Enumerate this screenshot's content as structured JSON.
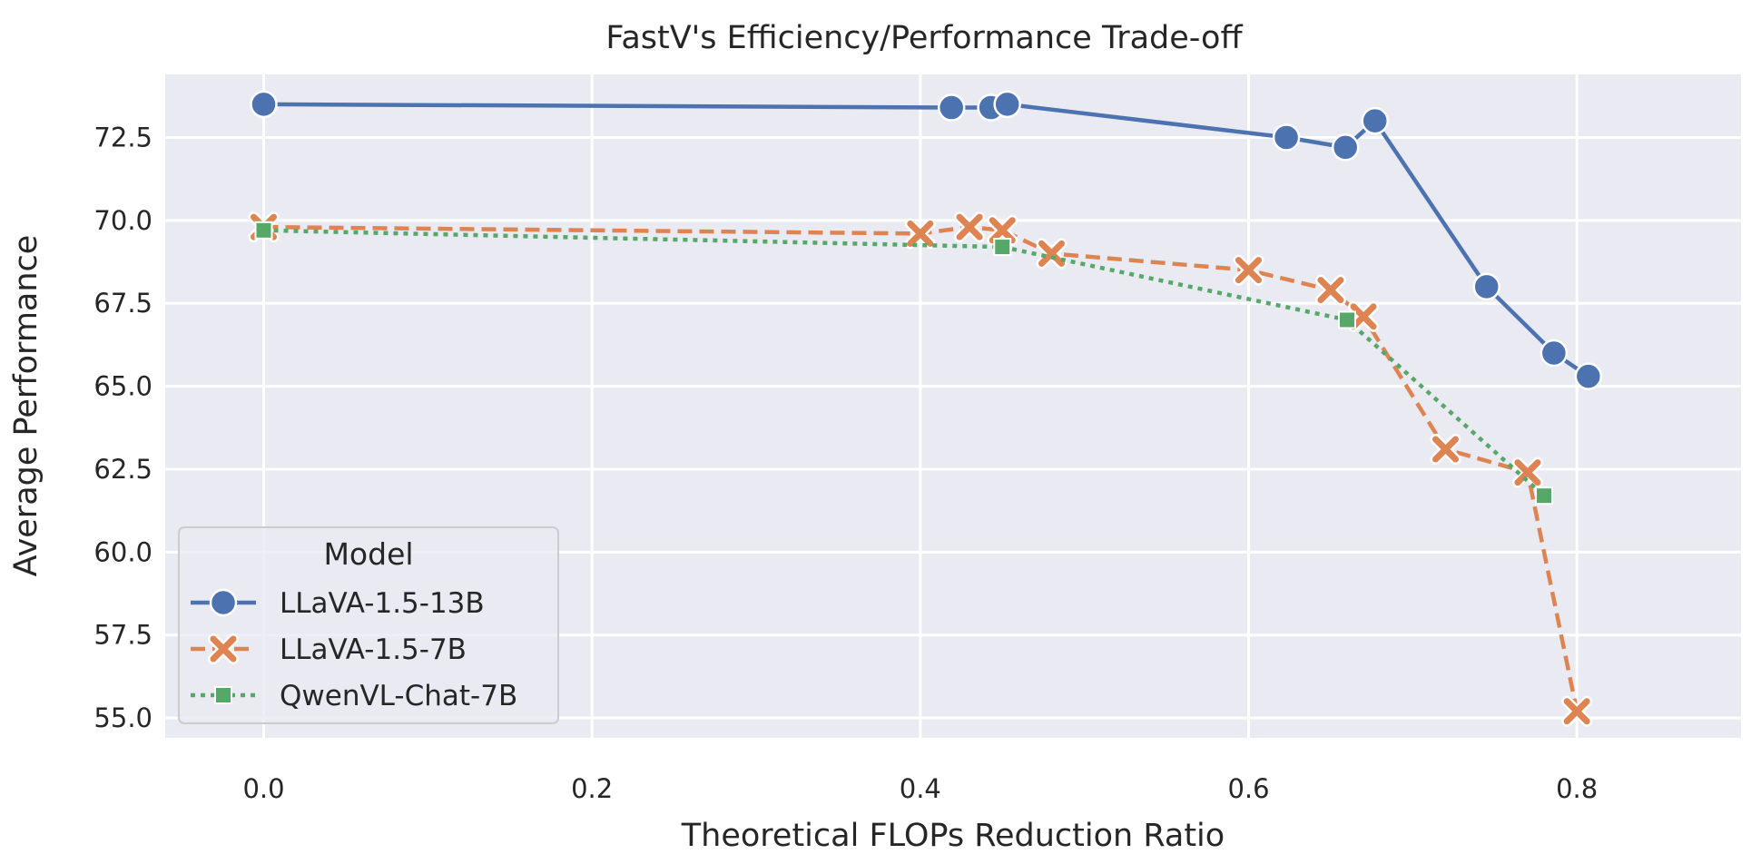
{
  "chart_data": {
    "type": "line",
    "title": "FastV's Efficiency/Performance Trade-off",
    "xlabel": "Theoretical FLOPs Reduction Ratio",
    "ylabel": "Average Performance",
    "xlim": [
      -0.06,
      0.9
    ],
    "ylim": [
      54.4,
      74.4
    ],
    "xticks": [
      0.0,
      0.2,
      0.4,
      0.6,
      0.8
    ],
    "xtick_labels": [
      "0.0",
      "0.2",
      "0.4",
      "0.6",
      "0.8"
    ],
    "yticks": [
      55.0,
      57.5,
      60.0,
      62.5,
      65.0,
      67.5,
      70.0,
      72.5
    ],
    "ytick_labels": [
      "55.0",
      "57.5",
      "60.0",
      "62.5",
      "65.0",
      "67.5",
      "70.0",
      "72.5"
    ],
    "grid": true,
    "background": "#eaeaf2",
    "legend": {
      "title": "Model",
      "placement": "lower-left"
    },
    "series": [
      {
        "name": "LLaVA-1.5-13B",
        "color": "#4c72b0",
        "line_style": "solid",
        "marker": "circle",
        "x": [
          0.0,
          0.419,
          0.443,
          0.453,
          0.623,
          0.659,
          0.677,
          0.745,
          0.786,
          0.807
        ],
        "y": [
          73.5,
          73.4,
          73.4,
          73.5,
          72.5,
          72.2,
          73.0,
          68.0,
          66.0,
          65.3
        ]
      },
      {
        "name": "LLaVA-1.5-7B",
        "color": "#dd8452",
        "line_style": "dashed",
        "marker": "x",
        "x": [
          0.0,
          0.4,
          0.43,
          0.45,
          0.48,
          0.6,
          0.65,
          0.67,
          0.72,
          0.77,
          0.8
        ],
        "y": [
          69.8,
          69.6,
          69.8,
          69.7,
          69.0,
          68.5,
          67.9,
          67.1,
          63.1,
          62.4,
          55.2
        ]
      },
      {
        "name": "QwenVL-Chat-7B",
        "color": "#55a868",
        "line_style": "dotted",
        "marker": "square",
        "x": [
          0.0,
          0.45,
          0.66,
          0.78
        ],
        "y": [
          69.7,
          69.2,
          67.0,
          61.7
        ]
      }
    ]
  }
}
